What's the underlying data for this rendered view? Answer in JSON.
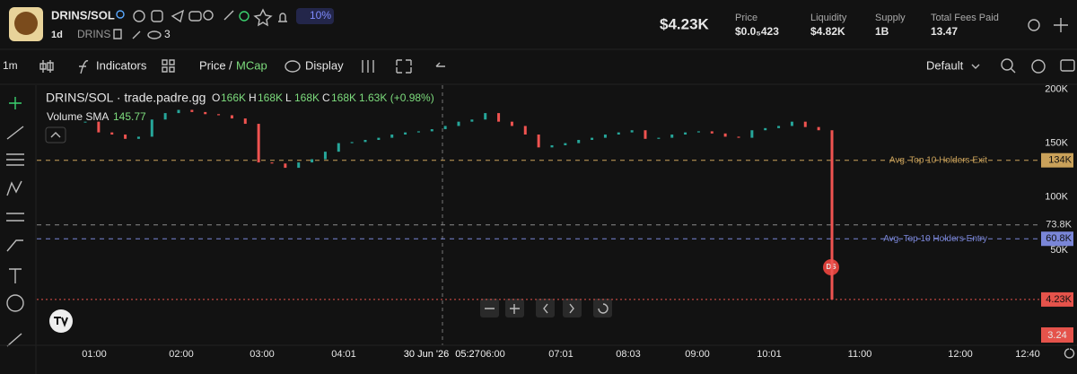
{
  "header": {
    "pair": "DRINS/SOL",
    "badge": "10%",
    "age": "1d",
    "ticker": "DRINS",
    "watchers": "3",
    "market_cap": "$4.23K",
    "stats": [
      {
        "label": "Price",
        "value": "$0.0₅423"
      },
      {
        "label": "Liquidity",
        "value": "$4.82K"
      },
      {
        "label": "Supply",
        "value": "1B"
      },
      {
        "label": "Total Fees Paid",
        "value": "13.47"
      }
    ]
  },
  "toolbar": {
    "interval": "1m",
    "indicators": "Indicators",
    "price": "Price",
    "separator": "/",
    "mcap": "MCap",
    "display": "Display",
    "layout": "Default"
  },
  "chart": {
    "type": "candlestick",
    "title": "DRINS/SOL · trade.padre.gg",
    "ohlc": [
      {
        "key": "O",
        "value": "166K"
      },
      {
        "key": "H",
        "value": "168K"
      },
      {
        "key": "L",
        "value": "168K"
      },
      {
        "key": "C",
        "value": "168K"
      }
    ],
    "change": "1.63K (+0.98%)",
    "volume_label": "Volume SMA",
    "volume_value": "145.77",
    "volume_last": "3.24",
    "marker": "DS",
    "x_labels": [
      "01:00",
      "02:00",
      "03:00",
      "04:01",
      "30 Jun '26",
      "05:27",
      "06:00",
      "07:01",
      "08:03",
      "09:00",
      "10:01",
      "11:00",
      "12:00",
      "12:40"
    ],
    "values": [
      170000,
      160000,
      158000,
      154000,
      156000,
      172000,
      178000,
      181000,
      179000,
      177000,
      176000,
      173000,
      168000,
      132000,
      131000,
      127000,
      132000,
      135000,
      142000,
      150000,
      151000,
      153000,
      155000,
      158000,
      160000,
      161000,
      163000,
      166000,
      170000,
      172000,
      178000,
      170000,
      166000,
      158000,
      146000,
      148000,
      150000,
      153000,
      155000,
      158000,
      160000,
      162000,
      154000,
      155000,
      158000,
      160000,
      161000,
      159000,
      156000,
      155000,
      162000,
      164000,
      166000,
      170000,
      165000,
      162000,
      4230
    ],
    "color_up": "#26a69a",
    "color_down": "#ef5350",
    "ylim": [
      -38500,
      204000
    ],
    "yticks": [
      {
        "value": 200000,
        "label": "200K"
      },
      {
        "value": 150000,
        "label": "150K"
      },
      {
        "value": 100000,
        "label": "100K"
      },
      {
        "value": 50000,
        "label": "50K"
      }
    ],
    "lines": [
      {
        "value": 134000,
        "label": "134K",
        "text": "Avg. Top 10 Holders Exit",
        "color": "#c9a15a"
      },
      {
        "value": 73800,
        "label": "73.8K",
        "color": "#8a8a8a"
      },
      {
        "value": 60800,
        "label": "60.8K",
        "text": "Avg. Top 10 Holders Entry",
        "color": "#7a86d8"
      },
      {
        "value": 4230,
        "label": "4.23K",
        "color": "#e5534b"
      }
    ]
  }
}
